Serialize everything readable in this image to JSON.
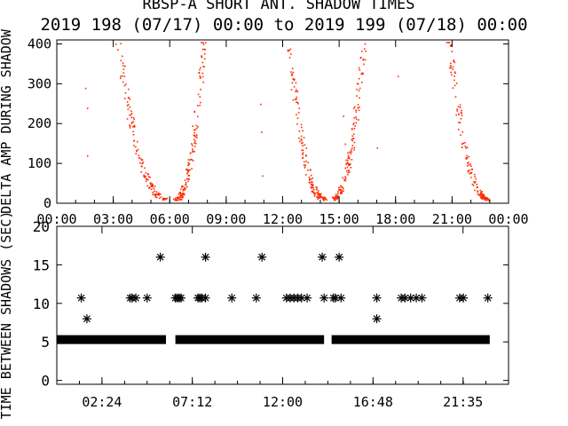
{
  "header": {
    "title": "RBSP-A SHORT ANT. SHADOW TIMES",
    "subtitle": "2019 198 (07/17) 00:00 to 2019 199 (07/18) 00:00"
  },
  "colors": {
    "background": "#ffffff",
    "axes": "#000000",
    "top_points": "#ff2a00",
    "bottom_points": "#000000"
  },
  "chart_data": [
    {
      "type": "scatter",
      "ylabel": "DELTA AMP DURING SHADOW",
      "x_unit": "hours",
      "xlim": [
        0,
        24
      ],
      "ylim": [
        0,
        410
      ],
      "xtick_labels": [
        "00:00",
        "03:00",
        "06:00",
        "09:00",
        "12:00",
        "15:00",
        "18:00",
        "21:00",
        "00:00"
      ],
      "xtick_values": [
        0,
        3,
        6,
        9,
        12,
        15,
        18,
        21,
        24
      ],
      "ytick_values": [
        0,
        100,
        200,
        300,
        400
      ],
      "marker": "dot",
      "color": "#ff2a00",
      "clusters": [
        {
          "x_start": 3.2,
          "x_end": 5.8,
          "y_start": 400,
          "y_end": 10
        },
        {
          "x_start": 6.3,
          "x_end": 7.8,
          "y_start": 10,
          "y_end": 400
        },
        {
          "x_start": 12.3,
          "x_end": 14.2,
          "y_start": 400,
          "y_end": 10
        },
        {
          "x_start": 14.6,
          "x_end": 16.3,
          "y_start": 10,
          "y_end": 400
        },
        {
          "x_start": 20.8,
          "x_end": 22.9,
          "y_start": 400,
          "y_end": 10
        }
      ],
      "isolated_points": [
        {
          "x": 1.5,
          "y": 290
        },
        {
          "x": 1.6,
          "y": 240
        },
        {
          "x": 1.6,
          "y": 120
        },
        {
          "x": 10.8,
          "y": 250
        },
        {
          "x": 10.85,
          "y": 180
        },
        {
          "x": 10.9,
          "y": 70
        },
        {
          "x": 15.2,
          "y": 220
        },
        {
          "x": 15.3,
          "y": 150
        },
        {
          "x": 17.0,
          "y": 140
        },
        {
          "x": 18.1,
          "y": 320
        }
      ]
    },
    {
      "type": "scatter",
      "ylabel": "TIME BETWEEN SHADOWS (SEC)",
      "x_unit": "hours",
      "xlim": [
        0,
        24
      ],
      "ylim": [
        -0.5,
        20
      ],
      "xtick_labels": [
        "02:24",
        "07:12",
        "12:00",
        "16:48",
        "21:35"
      ],
      "xtick_values": [
        2.4,
        7.2,
        12.0,
        16.8,
        21.583
      ],
      "ytick_values": [
        0,
        5,
        10,
        15,
        20
      ],
      "marker": "asterisk",
      "color": "#000000",
      "baseline_band": {
        "y": 5.3,
        "segments": [
          [
            0,
            5.8
          ],
          [
            6.3,
            14.2
          ],
          [
            14.6,
            23.0
          ]
        ]
      },
      "points_y_10_7": [
        1.3,
        3.9,
        4.0,
        4.2,
        4.8,
        6.3,
        6.4,
        6.5,
        6.6,
        7.5,
        7.6,
        7.7,
        7.9,
        9.3,
        10.6,
        12.2,
        12.4,
        12.6,
        12.8,
        13.0,
        13.3,
        14.2,
        14.7,
        14.8,
        15.1,
        17.0,
        18.3,
        18.5,
        18.8,
        19.1,
        19.4,
        21.4,
        21.6,
        22.9
      ],
      "points_y_16": [
        5.5,
        7.9,
        10.9,
        14.1,
        15.0
      ],
      "points_y_8": [
        1.6,
        17.0
      ]
    }
  ]
}
